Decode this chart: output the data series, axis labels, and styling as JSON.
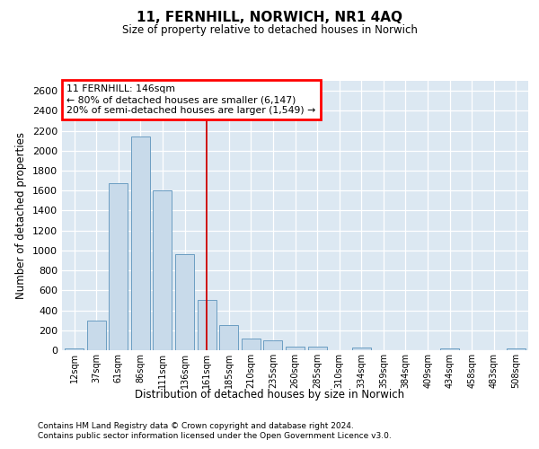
{
  "title": "11, FERNHILL, NORWICH, NR1 4AQ",
  "subtitle": "Size of property relative to detached houses in Norwich",
  "xlabel": "Distribution of detached houses by size in Norwich",
  "ylabel": "Number of detached properties",
  "footnote1": "Contains HM Land Registry data © Crown copyright and database right 2024.",
  "footnote2": "Contains public sector information licensed under the Open Government Licence v3.0.",
  "annotation_line1": "11 FERNHILL: 146sqm",
  "annotation_line2": "← 80% of detached houses are smaller (6,147)",
  "annotation_line3": "20% of semi-detached houses are larger (1,549) →",
  "bar_color": "#c8daea",
  "bar_edge_color": "#6b9dc2",
  "bg_fig": "#ffffff",
  "bg_plot": "#dce8f2",
  "grid_color": "#ffffff",
  "vline_color": "#cc0000",
  "categories": [
    "12sqm",
    "37sqm",
    "61sqm",
    "86sqm",
    "111sqm",
    "136sqm",
    "161sqm",
    "185sqm",
    "210sqm",
    "235sqm",
    "260sqm",
    "285sqm",
    "310sqm",
    "334sqm",
    "359sqm",
    "384sqm",
    "409sqm",
    "434sqm",
    "458sqm",
    "483sqm",
    "508sqm"
  ],
  "values": [
    20,
    300,
    1670,
    2140,
    1600,
    960,
    500,
    250,
    120,
    95,
    40,
    35,
    0,
    30,
    0,
    0,
    0,
    20,
    0,
    0,
    20
  ],
  "ylim": [
    0,
    2700
  ],
  "yticks": [
    0,
    200,
    400,
    600,
    800,
    1000,
    1200,
    1400,
    1600,
    1800,
    2000,
    2200,
    2400,
    2600
  ],
  "vline_x_index": 6.0
}
